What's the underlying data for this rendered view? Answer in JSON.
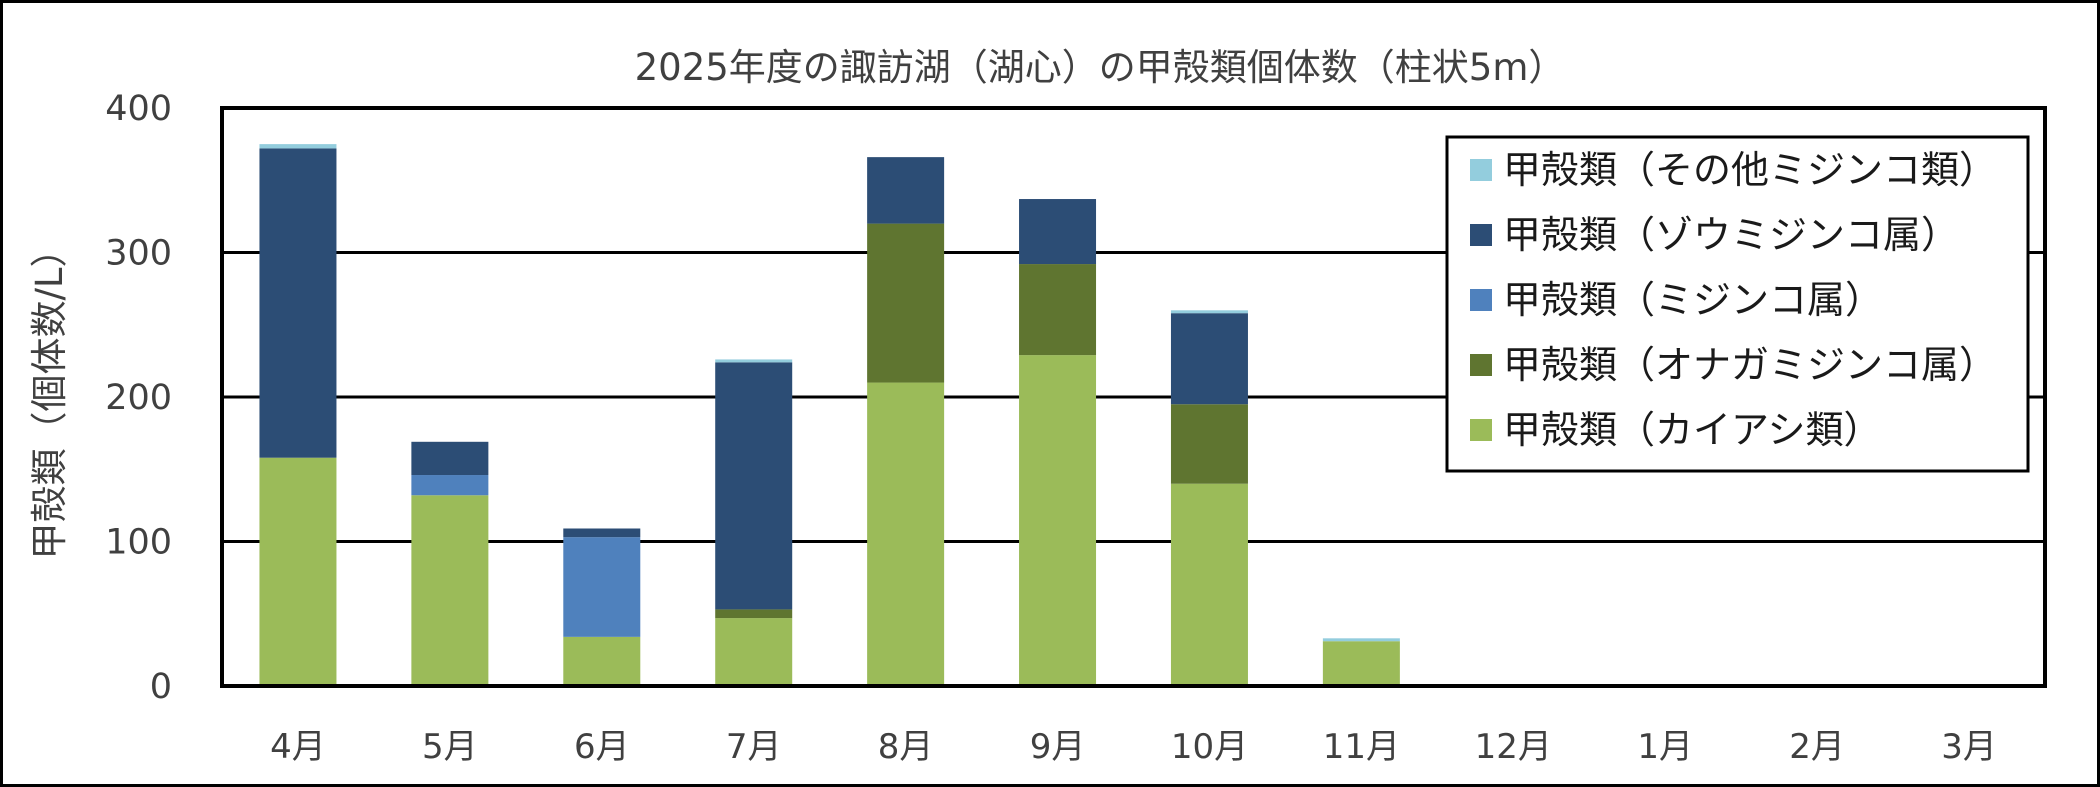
{
  "chart_data": {
    "type": "bar",
    "stacked": true,
    "title": "2025年度の諏訪湖（湖心）の甲殻類個体数（柱状5m）",
    "xlabel": "",
    "ylabel": "甲殻類（個体数/L）",
    "ylim": [
      0,
      400
    ],
    "yticks": [
      0,
      100,
      200,
      300,
      400
    ],
    "grid": true,
    "legend_position": "top-right",
    "categories": [
      "4月",
      "5月",
      "6月",
      "7月",
      "8月",
      "9月",
      "10月",
      "11月",
      "12月",
      "1月",
      "2月",
      "3月"
    ],
    "series": [
      {
        "name": "甲殻類（カイアシ類）",
        "color": "#9BBB59",
        "values": [
          158,
          132,
          34,
          47,
          210,
          229,
          140,
          31,
          null,
          null,
          null,
          null
        ]
      },
      {
        "name": "甲殻類（オナガミジンコ属）",
        "color": "#5F7530",
        "values": [
          0,
          0,
          0,
          6,
          110,
          63,
          55,
          0,
          null,
          null,
          null,
          null
        ]
      },
      {
        "name": "甲殻類（ミジンコ属）",
        "color": "#4F81BD",
        "values": [
          0,
          14,
          69,
          0,
          0,
          0,
          0,
          0,
          null,
          null,
          null,
          null
        ]
      },
      {
        "name": "甲殻類（ゾウミジンコ属）",
        "color": "#2C4D75",
        "values": [
          214,
          23,
          6,
          171,
          46,
          45,
          63,
          0,
          null,
          null,
          null,
          null
        ]
      },
      {
        "name": "甲殻類（その他ミジンコ類）",
        "color": "#93CDDD",
        "values": [
          3,
          0,
          0,
          2,
          0,
          0,
          2,
          2,
          null,
          null,
          null,
          null
        ]
      }
    ],
    "legend_order": [
      "甲殻類（その他ミジンコ類）",
      "甲殻類（ゾウミジンコ属）",
      "甲殻類（ミジンコ属）",
      "甲殻類（オナガミジンコ属）",
      "甲殻類（カイアシ類）"
    ]
  }
}
